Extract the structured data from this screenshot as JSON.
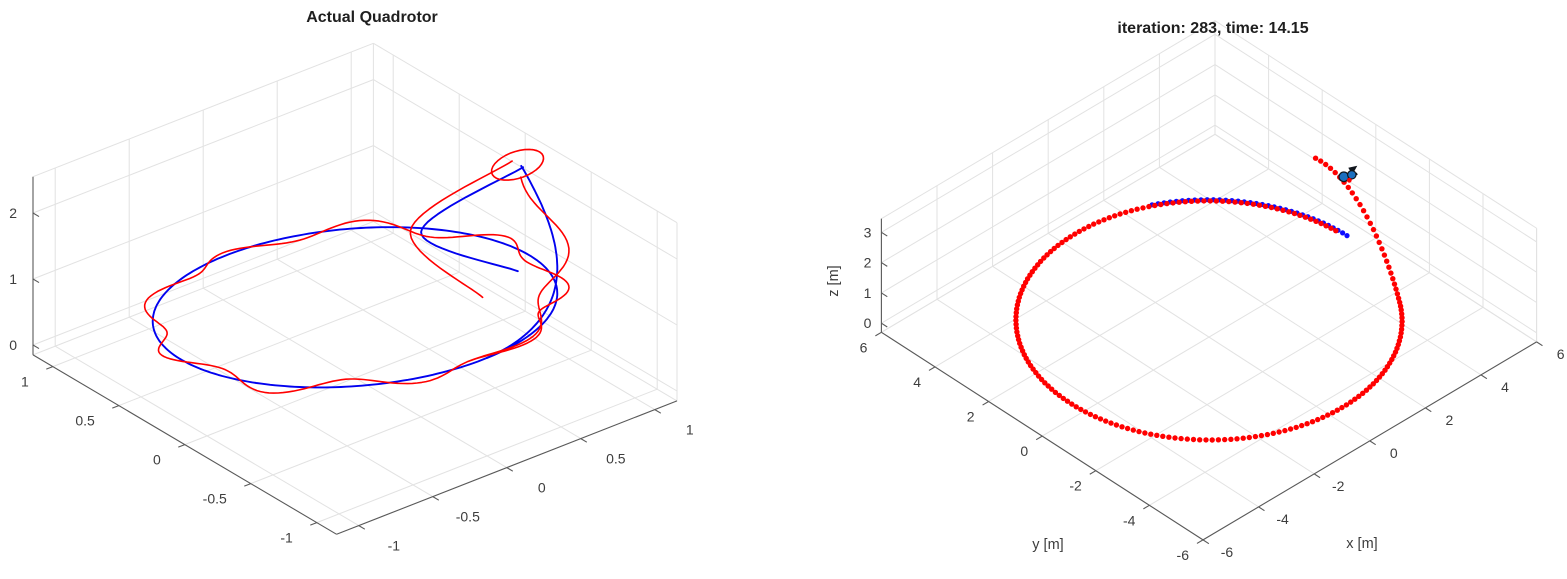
{
  "figure": {
    "background": "#ffffff",
    "grid_color": "#e2e2e2",
    "axis_color": "#595959",
    "reference_color": "#0202EF",
    "actual_color": "#FF0000"
  },
  "meta": {
    "iteration": 283,
    "time_s": 14.15
  },
  "chart_data": [
    {
      "id": "actual-quadrotor",
      "title": "Actual Quadrotor",
      "type": "line",
      "is3d": true,
      "legend_position": "none",
      "axes": {
        "xlim": [
          -1.15,
          1.15
        ],
        "ylim": [
          -1.15,
          1.15
        ],
        "zlim": [
          -0.15,
          2.55
        ],
        "xticks": [
          -1,
          -0.5,
          0,
          0.5,
          1
        ],
        "xtick_labels": [
          "-1",
          "-0.5",
          "0",
          "0.5",
          "1"
        ],
        "yticks": [
          -1,
          -0.5,
          0,
          0.5,
          1
        ],
        "ytick_labels": [
          "-1",
          "-0.5",
          "0",
          "0.5",
          "1"
        ],
        "zticks": [
          0,
          1,
          2
        ],
        "ztick_labels": [
          "0",
          "1",
          "2"
        ],
        "xlabel": "",
        "ylabel": "",
        "zlabel": "",
        "grid": true
      },
      "series": [
        {
          "name": "reference-trajectory",
          "color": "#0202EF",
          "mode": "line",
          "width": 1.9,
          "kind": "helix",
          "r": 1.02,
          "theta0": -7,
          "theta1": -451,
          "n": 300,
          "zplane": {
            "c": 0.92,
            "px": 0.056,
            "py": -0.445
          },
          "zstart": 2.32,
          "settle_deg": 88
        },
        {
          "name": "reference-start-segment",
          "color": "#0202EF",
          "mode": "line",
          "width": 1.9,
          "kind": "points",
          "pts": [
            [
              1.02,
              -0.13,
              2.3
            ],
            [
              0.5,
              0.06,
              1.55
            ],
            [
              0.85,
              -0.28,
              1.05
            ]
          ]
        },
        {
          "name": "actual-trajectory",
          "color": "#FF0000",
          "mode": "line",
          "width": 1.6,
          "kind": "helix",
          "r": 1.02,
          "theta0": -12,
          "theta1": -455,
          "n": 340,
          "zplane": {
            "c": 0.92,
            "px": 0.056,
            "py": -0.445
          },
          "zstart": 2.3,
          "settle_deg": 85,
          "r_wobble": [
            0.065,
            9,
            0.8
          ],
          "z_wobble": [
            0.045,
            6,
            2.5
          ]
        },
        {
          "name": "takeoff-loop",
          "color": "#FF0000",
          "mode": "line",
          "width": 1.6,
          "kind": "loop",
          "center": [
            1.0,
            -0.11,
            2.33
          ],
          "ax": 0.17,
          "ay": 0.05,
          "az": 0.12,
          "phi0": -40,
          "phi1": 400,
          "n": 40
        },
        {
          "name": "actual-start-segment",
          "color": "#FF0000",
          "mode": "line",
          "width": 1.6,
          "kind": "points",
          "pts": [
            [
              0.99,
              -0.08,
              2.36
            ],
            [
              0.42,
              0.05,
              1.66
            ],
            [
              0.55,
              -0.35,
              1.0
            ]
          ]
        }
      ]
    },
    {
      "id": "iteration-view",
      "title": "iteration: 283, time: 14.15",
      "type": "scatter",
      "is3d": true,
      "iteration": 283,
      "time_s": 14.15,
      "legend_position": "none",
      "axes": {
        "xlim": [
          -6,
          6
        ],
        "ylim": [
          -6,
          6
        ],
        "zlim": [
          -0.3,
          3.45
        ],
        "xticks": [
          -6,
          -4,
          -2,
          0,
          2,
          4,
          6
        ],
        "xtick_labels": [
          "-6",
          "-4",
          "-2",
          "0",
          "2",
          "4",
          "6"
        ],
        "yticks": [
          -6,
          -4,
          -2,
          0,
          2,
          4,
          6
        ],
        "ytick_labels": [
          "-6",
          "-4",
          "-2",
          "0",
          "2",
          "4",
          "6"
        ],
        "zticks": [
          0,
          1,
          2,
          3
        ],
        "ztick_labels": [
          "0",
          "1",
          "2",
          "3"
        ],
        "xlabel": "x [m]",
        "ylabel": "y [m]",
        "zlabel": "z [m]",
        "grid": true
      },
      "trajectory_shape": {
        "kind": "circle",
        "radius_m": 5,
        "center_xy": [
          0,
          0
        ],
        "cruise_z_m": 0.25,
        "final_climb_z_m": 2.0
      },
      "series": [
        {
          "name": "reference-waypoints",
          "color": "#0D0DFF",
          "mode": "dots",
          "dot_r": 2.6,
          "kind": "helix",
          "r": 5.05,
          "theta0": 1,
          "theta1": 63,
          "n": 34,
          "zplane": {
            "c": 0.25
          }
        },
        {
          "name": "actual-path-dots",
          "color": "#FF0000",
          "mode": "dots",
          "dot_r": 2.7,
          "kind": "helix",
          "r": 5.0,
          "r_end": 5.35,
          "theta0": 5,
          "theta1": 375,
          "n": 200,
          "zplane": {
            "c": 0.25
          },
          "z_end": 2.0,
          "rise_deg": 50
        }
      ],
      "marker": {
        "name": "quadrotor",
        "position": [
          5.3,
          0.3,
          1.9
        ],
        "body_color": "#10151c",
        "rotor_color": "#1b6fbf",
        "center_color": "#ff0000"
      }
    }
  ]
}
